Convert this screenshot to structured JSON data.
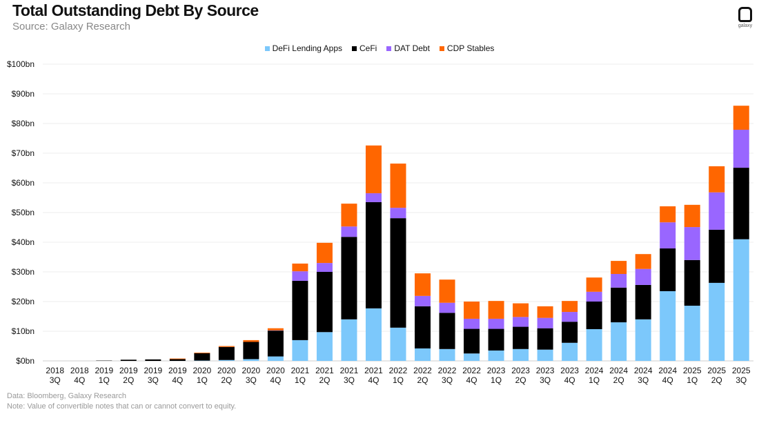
{
  "header": {
    "title": "Total Outstanding Debt By Source",
    "subtitle": "Source: Galaxy Research",
    "logo_text": "galaxy"
  },
  "footer": {
    "data": "Data: Bloomberg, Galaxy Research",
    "note": "Note: Value of convertible notes  that can or cannot convert to equity."
  },
  "chart_data": {
    "type": "bar",
    "stacked": true,
    "title": "Total Outstanding Debt By Source",
    "ylim": [
      0,
      100
    ],
    "yticks": [
      0,
      10,
      20,
      30,
      40,
      50,
      60,
      70,
      80,
      90,
      100
    ],
    "ytick_labels": [
      "$0bn",
      "$10bn",
      "$20bn",
      "$30bn",
      "$40bn",
      "$50bn",
      "$60bn",
      "$70bn",
      "$80bn",
      "$90bn",
      "$100bn"
    ],
    "grid": true,
    "legend": "top-center",
    "categories": [
      "2018 3Q",
      "2018 4Q",
      "2019 1Q",
      "2019 2Q",
      "2019 3Q",
      "2019 4Q",
      "2020 1Q",
      "2020 2Q",
      "2020 3Q",
      "2020 4Q",
      "2021 1Q",
      "2021 2Q",
      "2021 3Q",
      "2021 4Q",
      "2022 1Q",
      "2022 2Q",
      "2022 3Q",
      "2022 4Q",
      "2023 1Q",
      "2023 2Q",
      "2023 3Q",
      "2023 4Q",
      "2024 1Q",
      "2024 2Q",
      "2024 3Q",
      "2024 4Q",
      "2025 1Q",
      "2025 2Q",
      "2025 3Q"
    ],
    "series": [
      {
        "name": "DeFi Lending Apps",
        "color": "#7CC8FB",
        "values": [
          0,
          0,
          0,
          0,
          0,
          0,
          0.1,
          0.3,
          0.6,
          1.5,
          7,
          9.7,
          14,
          17.7,
          11.2,
          4.2,
          4,
          2.5,
          3.5,
          4,
          3.8,
          6.1,
          10.7,
          13,
          14,
          23.5,
          18.6,
          26.3,
          41
        ]
      },
      {
        "name": "CeFi",
        "color": "#000000",
        "values": [
          0,
          0,
          0.1,
          0.4,
          0.5,
          0.6,
          2.5,
          4.4,
          5.8,
          8.7,
          20,
          20.3,
          27.8,
          35.8,
          36.9,
          14.2,
          12.2,
          8.3,
          7.3,
          7.5,
          7.2,
          7.1,
          9.3,
          11.7,
          11.6,
          14.4,
          15.4,
          17.9,
          24.1
        ]
      },
      {
        "name": "DAT Debt",
        "color": "#9966FF",
        "values": [
          0,
          0,
          0,
          0,
          0,
          0,
          0,
          0,
          0,
          0.1,
          3.2,
          3,
          3.5,
          3,
          3.5,
          3.5,
          3.4,
          3.4,
          3.4,
          3.3,
          3.5,
          3.3,
          3.3,
          4.6,
          5.4,
          8.8,
          11.1,
          12.6,
          12.8
        ]
      },
      {
        "name": "CDP Stables",
        "color": "#FF6600",
        "values": [
          0,
          0,
          0,
          0,
          0,
          0.2,
          0.2,
          0.3,
          0.6,
          0.7,
          2.6,
          6.8,
          7.7,
          16.1,
          14.9,
          7.6,
          7.8,
          5.8,
          6,
          4.6,
          3.9,
          3.7,
          4.8,
          4.4,
          5,
          5.4,
          7.5,
          8.8,
          8.1
        ]
      }
    ]
  }
}
